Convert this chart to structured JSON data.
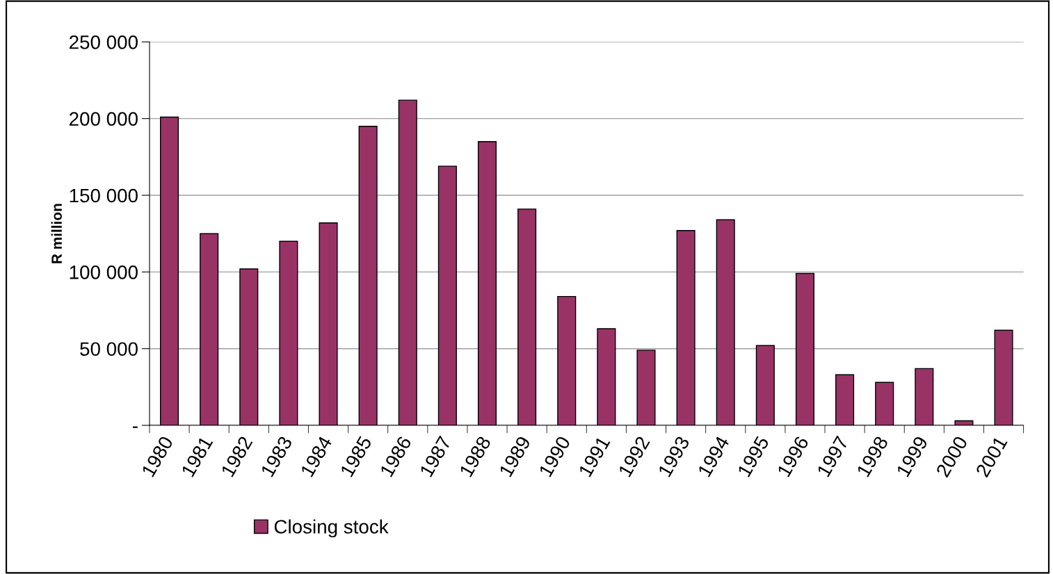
{
  "chart_data": {
    "type": "bar",
    "ylabel": "R million",
    "categories": [
      "1980",
      "1981",
      "1982",
      "1983",
      "1984",
      "1985",
      "1986",
      "1987",
      "1988",
      "1989",
      "1990",
      "1991",
      "1992",
      "1993",
      "1994",
      "1995",
      "1996",
      "1997",
      "1998",
      "1999",
      "2000",
      "2001"
    ],
    "series": [
      {
        "name": "Closing stock",
        "color": "#993366",
        "values": [
          201000,
          125000,
          102000,
          120000,
          132000,
          195000,
          212000,
          169000,
          185000,
          141000,
          84000,
          63000,
          49000,
          127000,
          134000,
          52000,
          99000,
          33000,
          28000,
          37000,
          3000,
          62000
        ]
      }
    ],
    "ylim": [
      0,
      250000
    ],
    "yticks": [
      {
        "value": 0,
        "label": "-"
      },
      {
        "value": 50000,
        "label": "50 000"
      },
      {
        "value": 100000,
        "label": "100 000"
      },
      {
        "value": 150000,
        "label": "150 000"
      },
      {
        "value": 200000,
        "label": "200 000"
      },
      {
        "value": 250000,
        "label": "250 000"
      }
    ],
    "grid": "y",
    "legend": "bottom"
  }
}
